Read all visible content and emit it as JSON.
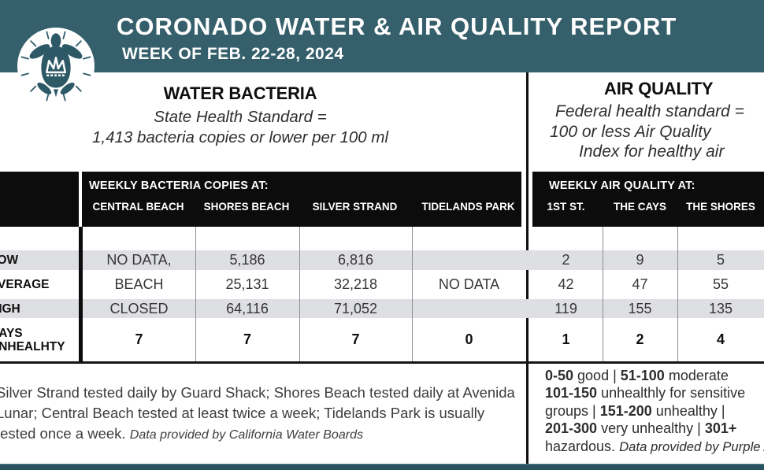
{
  "header": {
    "title": "CORONADO WATER & AIR QUALITY REPORT",
    "subtitle": "WEEK OF FEB. 22-28, 2024",
    "logo_icon": "sea-turtle-with-crown"
  },
  "colors": {
    "teal_band": "#345f6b",
    "bottom_bar": "#28525e",
    "table_header_bg": "#0c0c0c",
    "row_shade": "#dedfe2",
    "turtle": "#2d5966"
  },
  "water_section": {
    "title": "WATER BACTERIA",
    "standard_lines": [
      "State Health Standard  =",
      "1,413 bacteria copies or lower per 100 ml"
    ]
  },
  "air_section": {
    "title": "AIR QUALITY",
    "standard_lines": [
      "Federal health standard =",
      "100 or less Air Quality",
      "Index for healthy air"
    ]
  },
  "table": {
    "water": {
      "header": "WEEKLY BACTERIA COPIES AT:",
      "columns": [
        "CENTRAL BEACH",
        "SHORES BEACH",
        "SILVER STRAND",
        "TIDELANDS PARK"
      ]
    },
    "air": {
      "header": "WEEKLY AIR QUALITY AT:",
      "columns": [
        "1ST ST.",
        "THE CAYS",
        "THE SHORES"
      ]
    },
    "rows": [
      {
        "label": "LOW",
        "water": [
          "NO DATA,",
          "5,186",
          "6,816",
          ""
        ],
        "air": [
          "2",
          "9",
          "5"
        ]
      },
      {
        "label": "AVERAGE",
        "water": [
          "BEACH",
          "25,131",
          "32,218",
          "NO DATA"
        ],
        "air": [
          "42",
          "47",
          "55"
        ]
      },
      {
        "label": "HIGH",
        "water": [
          "CLOSED",
          "64,116",
          "71,052",
          ""
        ],
        "air": [
          "119",
          "155",
          "135"
        ]
      },
      {
        "label": "DAYS UNHEALHTY",
        "water": [
          "7",
          "7",
          "7",
          "0"
        ],
        "air": [
          "1",
          "2",
          "4"
        ]
      }
    ]
  },
  "water_notes": {
    "lines": [
      [
        {
          "text": "Silver Strand tested daily by Guard Shack; Shores Beach tested daily at Avenida"
        }
      ],
      [
        {
          "text": "Lunar; Central Beach tested at least twice a week; Tidelands Park is usually"
        }
      ],
      [
        {
          "text": "tested once a week. "
        },
        {
          "text": "Data provided by California Water Boards",
          "italic": true
        }
      ]
    ]
  },
  "air_notes": {
    "lines": [
      [
        {
          "text": "0-50",
          "bold": true
        },
        {
          "text": " good | "
        },
        {
          "text": "51-100",
          "bold": true
        },
        {
          "text": " moderate"
        }
      ],
      [
        {
          "text": "101-150",
          "bold": true
        },
        {
          "text": " unhealthly for sensitive"
        }
      ],
      [
        {
          "text": "groups | "
        },
        {
          "text": "151-200",
          "bold": true
        },
        {
          "text": " unhealthy |"
        }
      ],
      [
        {
          "text": "201-300",
          "bold": true
        },
        {
          "text": " very unhealthy | "
        },
        {
          "text": "301+",
          "bold": true
        }
      ],
      [
        {
          "text": "hazardous. "
        },
        {
          "text": "Data provided by Purple Air",
          "italic": true
        }
      ]
    ]
  }
}
